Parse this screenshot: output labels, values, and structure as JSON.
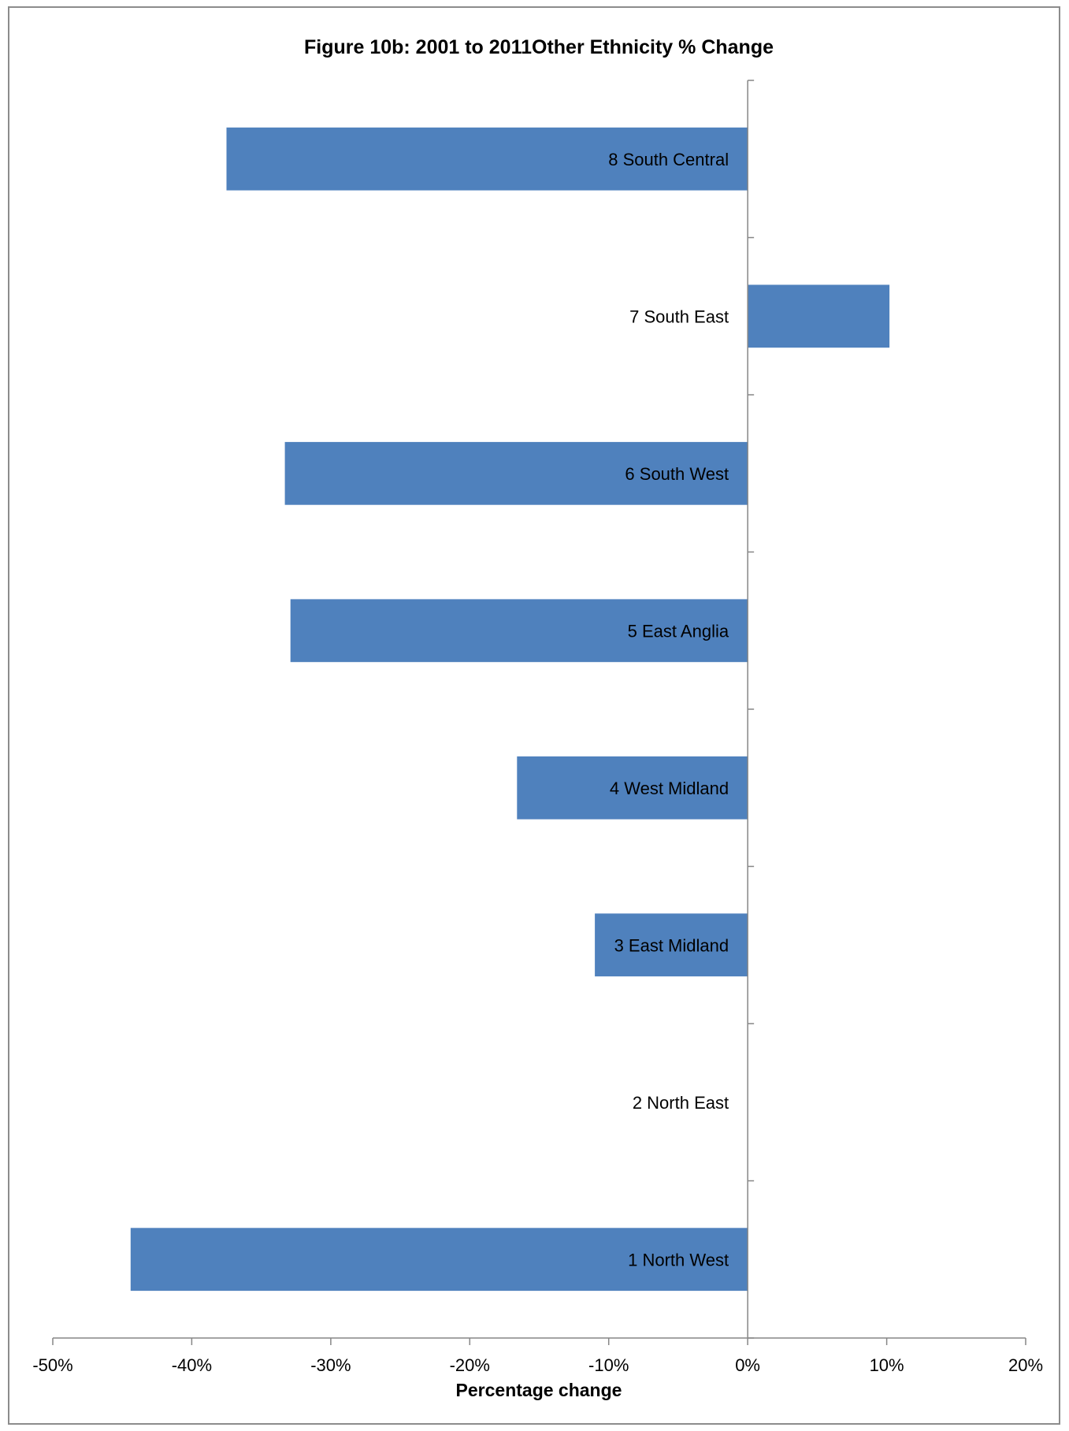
{
  "chart_data": {
    "type": "bar",
    "orientation": "horizontal",
    "title": "Figure 10b: 2001 to 2011Other Ethnicity % Change",
    "xlabel": "Percentage change",
    "ylabel": "",
    "xlim": [
      -50,
      20
    ],
    "x_ticks": [
      -50,
      -40,
      -30,
      -20,
      -10,
      0,
      10,
      20
    ],
    "x_tick_labels": [
      "-50%",
      "-40%",
      "-30%",
      "-20%",
      "-10%",
      "0%",
      "10%",
      "20%"
    ],
    "categories": [
      "1 North West",
      "2 North East",
      "3 East Midland",
      "4 West Midland",
      "5 East Anglia",
      "6 South West",
      "7 South East",
      "8 South Central"
    ],
    "values": [
      -44.4,
      0,
      -11.0,
      -16.6,
      -32.9,
      -33.3,
      10.2,
      -37.5
    ],
    "bar_color": "#4f81bd",
    "axis_color": "#868686",
    "grid": false,
    "legend": "none"
  }
}
